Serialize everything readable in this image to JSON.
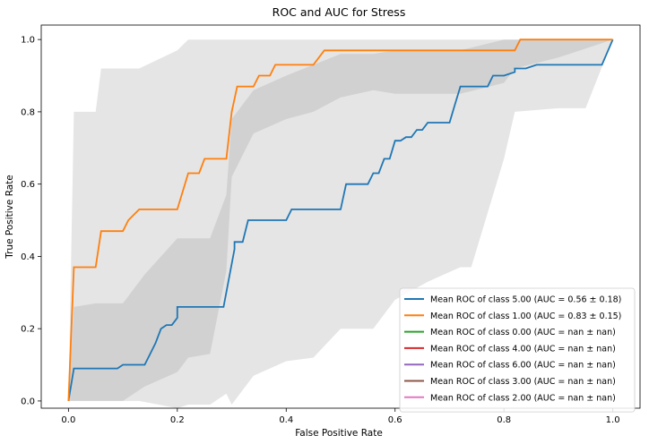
{
  "chart_data": {
    "type": "line",
    "title": "ROC and AUC for Stress",
    "xlabel": "False Positive Rate",
    "ylabel": "True Positive Rate",
    "xlim": [
      -0.05,
      1.05
    ],
    "ylim": [
      -0.02,
      1.04
    ],
    "xticks": [
      0.0,
      0.2,
      0.4,
      0.6,
      0.8,
      1.0
    ],
    "yticks": [
      0.0,
      0.2,
      0.4,
      0.6,
      0.8,
      1.0
    ],
    "xtick_labels": [
      "0.0",
      "0.2",
      "0.4",
      "0.6",
      "0.8",
      "1.0"
    ],
    "ytick_labels": [
      "0.0",
      "0.2",
      "0.4",
      "0.6",
      "0.8",
      "1.0"
    ],
    "grid": false,
    "legend_position": "lower-right",
    "bands": [
      {
        "fill": "#999999",
        "opacity": 0.25,
        "x": [
          0.0,
          0.01,
          0.02,
          0.05,
          0.06,
          0.12,
          0.13,
          0.2,
          0.22,
          0.26,
          0.29,
          0.3,
          0.34,
          0.4,
          0.45,
          0.5,
          0.56,
          0.6,
          0.66,
          0.72,
          0.74,
          0.8,
          0.82,
          0.9,
          0.95,
          1.0
        ],
        "upper": [
          0.0,
          0.8,
          0.8,
          0.8,
          0.92,
          0.92,
          0.92,
          0.97,
          1.0,
          1.0,
          1.0,
          1.0,
          1.0,
          1.0,
          1.0,
          1.0,
          1.0,
          1.0,
          1.0,
          1.0,
          1.0,
          1.0,
          1.0,
          1.0,
          1.0,
          1.0
        ],
        "lower": [
          0.0,
          0.0,
          0.0,
          0.0,
          0.0,
          0.0,
          0.0,
          -0.02,
          -0.01,
          -0.01,
          0.02,
          -0.01,
          0.07,
          0.11,
          0.12,
          0.2,
          0.2,
          0.28,
          0.33,
          0.37,
          0.37,
          0.67,
          0.8,
          0.81,
          0.81,
          1.0
        ]
      },
      {
        "fill": "#999999",
        "opacity": 0.25,
        "x": [
          0.0,
          0.01,
          0.05,
          0.06,
          0.1,
          0.14,
          0.2,
          0.22,
          0.26,
          0.29,
          0.3,
          0.34,
          0.4,
          0.45,
          0.5,
          0.56,
          0.6,
          0.66,
          0.72,
          0.8,
          0.82,
          0.9,
          1.0
        ],
        "upper": [
          0.0,
          0.26,
          0.27,
          0.27,
          0.27,
          0.35,
          0.45,
          0.45,
          0.45,
          0.57,
          0.78,
          0.86,
          0.9,
          0.93,
          0.96,
          0.96,
          0.97,
          0.97,
          0.97,
          1.0,
          1.0,
          1.0,
          1.0
        ],
        "lower": [
          0.0,
          0.0,
          0.0,
          0.0,
          0.0,
          0.04,
          0.08,
          0.12,
          0.13,
          0.36,
          0.62,
          0.74,
          0.78,
          0.8,
          0.84,
          0.86,
          0.85,
          0.85,
          0.85,
          0.88,
          0.92,
          0.95,
          1.0
        ]
      }
    ],
    "series": [
      {
        "name": "Mean ROC of class 5.00 (AUC = 0.56 ± 0.18)",
        "color": "#1f77b4",
        "x": [
          0.0,
          0.01,
          0.09,
          0.1,
          0.14,
          0.15,
          0.16,
          0.17,
          0.18,
          0.19,
          0.2,
          0.2,
          0.24,
          0.24,
          0.285,
          0.305,
          0.305,
          0.32,
          0.33,
          0.4,
          0.41,
          0.5,
          0.51,
          0.55,
          0.56,
          0.57,
          0.58,
          0.59,
          0.6,
          0.61,
          0.62,
          0.63,
          0.64,
          0.65,
          0.66,
          0.7,
          0.71,
          0.72,
          0.73,
          0.77,
          0.78,
          0.8,
          0.82,
          0.82,
          0.84,
          0.86,
          0.9,
          0.92,
          0.95,
          0.98,
          1.0
        ],
        "y": [
          0.0,
          0.09,
          0.09,
          0.1,
          0.1,
          0.13,
          0.16,
          0.2,
          0.21,
          0.21,
          0.23,
          0.26,
          0.26,
          0.26,
          0.26,
          0.42,
          0.44,
          0.44,
          0.5,
          0.5,
          0.53,
          0.53,
          0.6,
          0.6,
          0.63,
          0.63,
          0.67,
          0.67,
          0.72,
          0.72,
          0.73,
          0.73,
          0.75,
          0.75,
          0.77,
          0.77,
          0.82,
          0.87,
          0.87,
          0.87,
          0.9,
          0.9,
          0.91,
          0.92,
          0.92,
          0.93,
          0.93,
          0.93,
          0.93,
          0.93,
          1.0
        ]
      },
      {
        "name": "Mean ROC of class 1.00 (AUC = 0.83 ± 0.15)",
        "color": "#ff7f0e",
        "x": [
          0.0,
          0.01,
          0.05,
          0.06,
          0.1,
          0.11,
          0.13,
          0.2,
          0.22,
          0.24,
          0.25,
          0.29,
          0.3,
          0.31,
          0.34,
          0.35,
          0.37,
          0.38,
          0.45,
          0.47,
          0.5,
          0.51,
          0.55,
          0.82,
          0.83,
          1.0
        ],
        "y": [
          0.0,
          0.37,
          0.37,
          0.47,
          0.47,
          0.5,
          0.53,
          0.53,
          0.63,
          0.63,
          0.67,
          0.67,
          0.8,
          0.87,
          0.87,
          0.9,
          0.9,
          0.93,
          0.93,
          0.97,
          0.97,
          0.97,
          0.97,
          0.97,
          1.0,
          1.0
        ]
      },
      {
        "name": "Mean ROC of class 0.00 (AUC = nan ± nan)",
        "color": "#2ca02c",
        "x": [],
        "y": []
      },
      {
        "name": "Mean ROC of class 4.00 (AUC = nan ± nan)",
        "color": "#d62728",
        "x": [],
        "y": []
      },
      {
        "name": "Mean ROC of class 6.00 (AUC = nan ± nan)",
        "color": "#9467bd",
        "x": [],
        "y": []
      },
      {
        "name": "Mean ROC of class 3.00 (AUC = nan ± nan)",
        "color": "#8c564b",
        "x": [],
        "y": []
      },
      {
        "name": "Mean ROC of class 2.00 (AUC = nan ± nan)",
        "color": "#e377c2",
        "x": [],
        "y": []
      }
    ]
  }
}
